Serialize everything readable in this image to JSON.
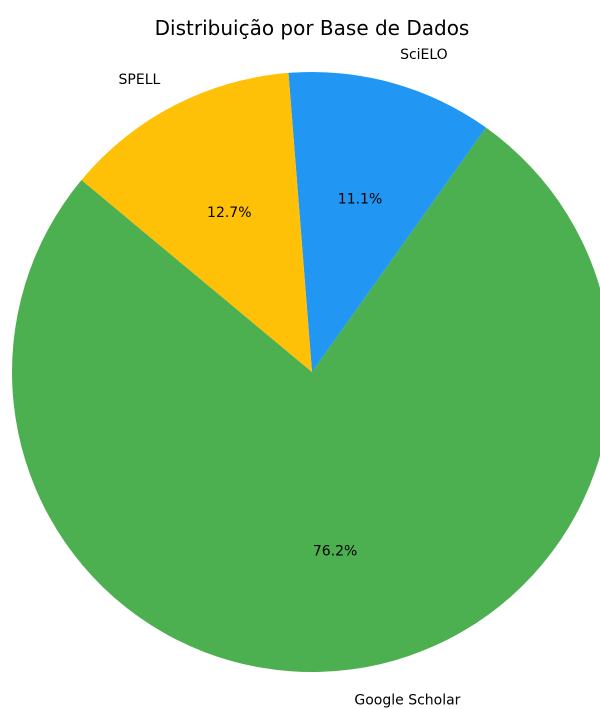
{
  "chart_data": {
    "type": "pie",
    "title": "Distribuição por Base de Dados",
    "slices": [
      {
        "label": "SciELO",
        "value": 11.1,
        "value_label": "11.1%",
        "color": "#2196F3"
      },
      {
        "label": "SPELL",
        "value": 12.7,
        "value_label": "12.7%",
        "color": "#FFC107"
      },
      {
        "label": "Google Scholar",
        "value": 76.2,
        "value_label": "76.2%",
        "color": "#4CAF50"
      }
    ],
    "start_angle_deg": 90,
    "direction": "clockwise_from_top_with_scielo_right"
  }
}
